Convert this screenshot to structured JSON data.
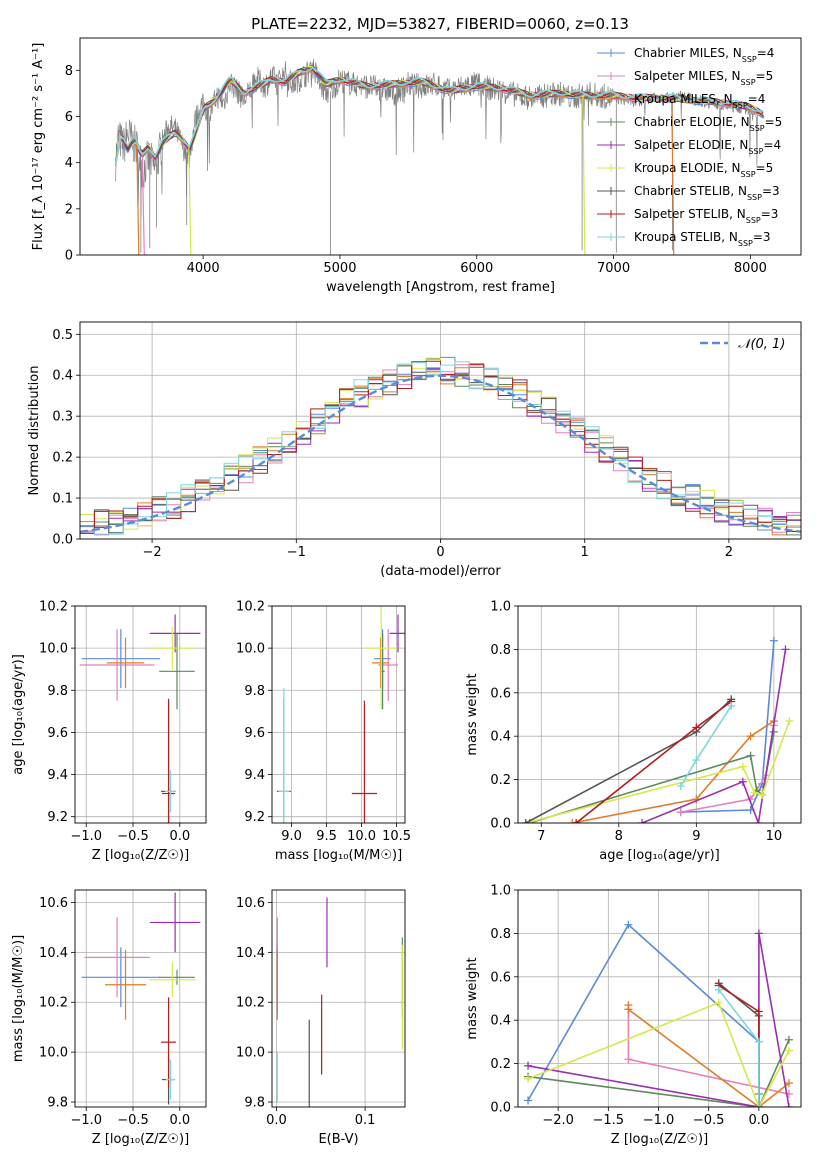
{
  "title": "PLATE=2232, MJD=53827, FIBERID=0060, z=0.13",
  "colors": {
    "Chabrier MILES": "#5b8bd8",
    "Salpeter MILES": "#e57fbd",
    "Kroupa MILES": "#e07b28",
    "Chabrier ELODIE": "#5c8a5c",
    "Salpeter ELODIE": "#9a2fb0",
    "Kroupa ELODIE": "#d6e84c",
    "Chabrier STELIB": "#555555",
    "Salpeter STELIB": "#b31e1e",
    "Kroupa STELIB": "#7dd8dc"
  },
  "chart_data": [
    {
      "id": "spectrum",
      "type": "line",
      "title": "PLATE=2232, MJD=53827, FIBERID=0060, z=0.13",
      "xlabel": "wavelength [Angstrom, rest frame]",
      "ylabel": "Flux [f_λ 10⁻¹⁷ erg cm⁻² s⁻¹ A⁻¹]",
      "xlim": [
        3100,
        8370
      ],
      "ylim": [
        0,
        9.4
      ],
      "xticks": [
        "4000",
        "5000",
        "6000",
        "7000",
        "8000"
      ],
      "yticks": [
        "0",
        "2",
        "4",
        "6",
        "8"
      ],
      "grid": false,
      "legend_position": "right",
      "legend": [
        {
          "label": "Chabrier MILES, N",
          "sub": "SSP",
          "tail": "=4",
          "series": "Chabrier MILES"
        },
        {
          "label": "Salpeter MILES, N",
          "sub": "SSP",
          "tail": "=5",
          "series": "Salpeter MILES"
        },
        {
          "label": "Kroupa MILES, N",
          "sub": "SSP",
          "tail": "=4",
          "series": "Kroupa MILES"
        },
        {
          "label": "Chabrier ELODIE, N",
          "sub": "SSP",
          "tail": "=5",
          "series": "Chabrier ELODIE"
        },
        {
          "label": "Salpeter ELODIE, N",
          "sub": "SSP",
          "tail": "=4",
          "series": "Salpeter ELODIE"
        },
        {
          "label": "Kroupa ELODIE, N",
          "sub": "SSP",
          "tail": "=5",
          "series": "Kroupa ELODIE"
        },
        {
          "label": "Chabrier STELIB, N",
          "sub": "SSP",
          "tail": "=3",
          "series": "Chabrier STELIB"
        },
        {
          "label": "Salpeter STELIB, N",
          "sub": "SSP",
          "tail": "=3",
          "series": "Salpeter STELIB"
        },
        {
          "label": "Kroupa STELIB, N",
          "sub": "SSP",
          "tail": "=3",
          "series": "Kroupa STELIB"
        }
      ],
      "observed": {
        "x": [
          3360,
          3380,
          3420,
          3450,
          3480,
          3520,
          3560,
          3600,
          3650,
          3700,
          3750,
          3800,
          3860,
          3900,
          3940,
          3990,
          4050,
          4100,
          4150,
          4200,
          4250,
          4300,
          4350,
          4400,
          4450,
          4500,
          4550,
          4600,
          4650,
          4700,
          4750,
          4800,
          4860,
          4920,
          5000,
          5100,
          5200,
          5300,
          5400,
          5500,
          5600,
          5700,
          5800,
          5900,
          6000,
          6100,
          6200,
          6300,
          6400,
          6500,
          6600,
          6700,
          6800,
          6900,
          7000,
          7100,
          7200,
          7300,
          7400,
          7500,
          7600,
          7700,
          7800,
          7900,
          8000,
          8100
        ],
        "y": [
          4.1,
          5.1,
          4.7,
          5.3,
          4.9,
          4.6,
          3.6,
          4.2,
          3.7,
          4.9,
          5.6,
          5.4,
          4.6,
          4.2,
          5.8,
          6.5,
          6.1,
          6.9,
          6.6,
          7.5,
          7.1,
          6.7,
          7.2,
          7.6,
          7.3,
          7.7,
          7.5,
          7.9,
          7.4,
          7.6,
          7.8,
          8.2,
          7.3,
          7.0,
          7.6,
          7.4,
          7.3,
          7.2,
          7.0,
          7.4,
          7.3,
          7.4,
          7.1,
          7.3,
          7.4,
          7.2,
          7.1,
          6.9,
          6.8,
          6.9,
          7.0,
          6.8,
          7.0,
          6.9,
          6.8,
          6.7,
          6.6,
          6.9,
          6.8,
          6.9,
          6.7,
          6.6,
          6.5,
          6.4,
          6.3,
          6.0
        ]
      },
      "model": {
        "x": [
          3360,
          3400,
          3450,
          3500,
          3550,
          3600,
          3650,
          3700,
          3750,
          3800,
          3850,
          3900,
          3950,
          4000,
          4100,
          4200,
          4300,
          4400,
          4500,
          4600,
          4700,
          4800,
          4900,
          5000,
          5200,
          5400,
          5600,
          5800,
          6000,
          6200,
          6400,
          6600,
          6800,
          7000,
          7200,
          7400,
          7600,
          7800,
          8000,
          8100
        ],
        "y": [
          4.0,
          5.2,
          4.6,
          5.0,
          4.3,
          4.7,
          4.2,
          4.8,
          5.1,
          5.3,
          5.0,
          4.6,
          5.3,
          6.3,
          6.8,
          7.6,
          7.0,
          7.3,
          7.6,
          7.5,
          7.9,
          8.1,
          7.4,
          7.6,
          7.3,
          7.4,
          7.5,
          7.1,
          7.3,
          7.2,
          6.9,
          7.0,
          6.9,
          6.9,
          6.8,
          6.8,
          6.7,
          6.6,
          6.4,
          6.1
        ]
      },
      "dropouts": [
        {
          "series": "Kroupa MILES",
          "x": 3530
        },
        {
          "series": "Salpeter MILES",
          "x": 3570
        },
        {
          "series": "Kroupa ELODIE",
          "x": 3910
        },
        {
          "series": "Kroupa ELODIE",
          "x": 6790
        },
        {
          "series": "Kroupa MILES",
          "x": 7440
        }
      ]
    },
    {
      "id": "residuals",
      "type": "histogram",
      "xlabel": "(data-model)/error",
      "ylabel": "Normed distribution",
      "xlim": [
        -2.5,
        2.5
      ],
      "ylim": [
        0,
        0.53
      ],
      "xticks": [
        "−2",
        "−1",
        "0",
        "1",
        "2"
      ],
      "yticks": [
        "0.0",
        "0.1",
        "0.2",
        "0.3",
        "0.4",
        "0.5"
      ],
      "grid": true,
      "legend_position": "top-right",
      "gaussian_label": "𝒩(0, 1)",
      "bin_width": 0.1,
      "bin_start": -2.5
    },
    {
      "id": "age-vs-Z",
      "type": "errorbar",
      "xlabel": "Z [log₁₀(Z/Z☉)]",
      "ylabel": "age [log₁₀(age/yr)]",
      "xlim": [
        -1.12,
        0.28
      ],
      "ylim": [
        9.17,
        10.2
      ],
      "xticks": [
        "−1.0",
        "−0.5",
        "0.0"
      ],
      "yticks": [
        "9.2",
        "9.4",
        "9.6",
        "9.8",
        "10.0",
        "10.2"
      ],
      "grid": true,
      "points": [
        {
          "series": "Chabrier MILES",
          "x": -0.63,
          "y": 9.95,
          "xerr": 0.42,
          "yerr": 0.14
        },
        {
          "series": "Salpeter MILES",
          "x": -0.67,
          "y": 9.92,
          "xerr": 0.4,
          "yerr": 0.17
        },
        {
          "series": "Kroupa MILES",
          "x": -0.58,
          "y": 9.93,
          "xerr": 0.2,
          "yerr": 0.12
        },
        {
          "series": "Chabrier ELODIE",
          "x": -0.03,
          "y": 9.89,
          "xerr": 0.19,
          "yerr": 0.18
        },
        {
          "series": "Salpeter ELODIE",
          "x": -0.05,
          "y": 10.07,
          "xerr": 0.27,
          "yerr": 0.09
        },
        {
          "series": "Kroupa ELODIE",
          "x": -0.08,
          "y": 10.0,
          "xerr": 0.22,
          "yerr": 0.1
        },
        {
          "series": "Chabrier STELIB",
          "x": -0.12,
          "y": 9.32,
          "xerr": 0.08,
          "yerr": 0.44
        },
        {
          "series": "Salpeter STELIB",
          "x": -0.12,
          "y": 9.31,
          "xerr": 0.07,
          "yerr": 0.44
        },
        {
          "series": "Kroupa STELIB",
          "x": -0.1,
          "y": 9.32,
          "xerr": 0.06,
          "yerr": 0.1
        }
      ]
    },
    {
      "id": "age-vs-mass",
      "type": "errorbar",
      "xlabel": "mass [log₁₀(M/M☉)]",
      "ylabel": "",
      "xlim": [
        8.72,
        10.62
      ],
      "ylim": [
        9.17,
        10.2
      ],
      "xticks": [
        "9.0",
        "9.5",
        "10.0",
        "10.5"
      ],
      "yticks": [
        "9.2",
        "9.4",
        "9.6",
        "9.8",
        "10.0",
        "10.2"
      ],
      "grid": true,
      "points": [
        {
          "series": "Chabrier MILES",
          "x": 10.3,
          "y": 9.95,
          "xerr": 0.12,
          "yerr": 0.14
        },
        {
          "series": "Salpeter MILES",
          "x": 10.38,
          "y": 9.92,
          "xerr": 0.14,
          "yerr": 0.17
        },
        {
          "series": "Kroupa MILES",
          "x": 10.27,
          "y": 9.93,
          "xerr": 0.12,
          "yerr": 0.12
        },
        {
          "series": "Chabrier ELODIE",
          "x": 10.3,
          "y": 9.89,
          "xerr": 0.03,
          "yerr": 0.18
        },
        {
          "series": "Salpeter ELODIE",
          "x": 10.52,
          "y": 10.07,
          "xerr": 0.12,
          "yerr": 0.09
        },
        {
          "series": "Kroupa ELODIE",
          "x": 10.28,
          "y": 10.0,
          "xerr": 0.23,
          "yerr": 0.29
        },
        {
          "series": "Chabrier STELIB",
          "x": 8.89,
          "y": 9.32,
          "xerr": 0.1,
          "yerr": 0.44
        },
        {
          "series": "Salpeter STELIB",
          "x": 10.04,
          "y": 9.31,
          "xerr": 0.18,
          "yerr": 0.44
        },
        {
          "series": "Kroupa STELIB",
          "x": 8.89,
          "y": 9.32,
          "xerr": 0.08,
          "yerr": 0.49
        }
      ]
    },
    {
      "id": "weight-vs-age",
      "type": "line",
      "xlabel": "age [log₁₀(age/yr)]",
      "ylabel": "mass weight",
      "xlim": [
        6.7,
        10.35
      ],
      "ylim": [
        0,
        1
      ],
      "xticks": [
        "7",
        "8",
        "9",
        "10"
      ],
      "yticks": [
        "0.0",
        "0.2",
        "0.4",
        "0.6",
        "0.8",
        "1.0"
      ],
      "grid": true,
      "series": [
        {
          "name": "Chabrier MILES",
          "x": [
            8.8,
            9.7,
            9.85,
            10.0
          ],
          "y": [
            0.05,
            0.06,
            0.18,
            0.84
          ]
        },
        {
          "name": "Salpeter MILES",
          "x": [
            8.8,
            9.7,
            9.9,
            10.0
          ],
          "y": [
            0.05,
            0.11,
            0.22,
            0.45
          ]
        },
        {
          "name": "Kroupa MILES",
          "x": [
            7.4,
            9.0,
            9.7,
            10.0
          ],
          "y": [
            0.0,
            0.11,
            0.4,
            0.47
          ]
        },
        {
          "name": "Chabrier ELODIE",
          "x": [
            6.85,
            9.7,
            9.78,
            9.85,
            10.0
          ],
          "y": [
            0.0,
            0.31,
            0.15,
            0.13,
            0.42
          ]
        },
        {
          "name": "Salpeter ELODIE",
          "x": [
            8.3,
            9.6,
            9.8,
            10.15
          ],
          "y": [
            0.0,
            0.19,
            0.0,
            0.8
          ]
        },
        {
          "name": "Kroupa ELODIE",
          "x": [
            6.8,
            9.6,
            9.75,
            9.85,
            10.2
          ],
          "y": [
            0.0,
            0.26,
            0.14,
            0.13,
            0.47
          ]
        },
        {
          "name": "Chabrier STELIB",
          "x": [
            6.8,
            9.0,
            9.45
          ],
          "y": [
            0.0,
            0.42,
            0.57
          ]
        },
        {
          "name": "Salpeter STELIB",
          "x": [
            7.45,
            9.0,
            9.45
          ],
          "y": [
            0.0,
            0.44,
            0.56
          ]
        },
        {
          "name": "Kroupa STELIB",
          "x": [
            8.8,
            9.0,
            9.45
          ],
          "y": [
            0.17,
            0.29,
            0.54
          ]
        }
      ]
    },
    {
      "id": "mass-vs-Z",
      "type": "errorbar",
      "xlabel": "Z [log₁₀(Z/Z☉)]",
      "ylabel": "mass [log₁₀(M/M☉)]",
      "xlim": [
        -1.12,
        0.28
      ],
      "ylim": [
        9.78,
        10.65
      ],
      "xticks": [
        "−1.0",
        "−0.5",
        "0.0"
      ],
      "yticks": [
        "9.8",
        "10.0",
        "10.2",
        "10.4",
        "10.6"
      ],
      "grid": true,
      "points": [
        {
          "series": "Chabrier MILES",
          "x": -0.63,
          "y": 10.3,
          "xerr": 0.42,
          "yerr": 0.12
        },
        {
          "series": "Salpeter MILES",
          "x": -0.67,
          "y": 10.38,
          "xerr": 0.35,
          "yerr": 0.16
        },
        {
          "series": "Kroupa MILES",
          "x": -0.58,
          "y": 10.27,
          "xerr": 0.22,
          "yerr": 0.14
        },
        {
          "series": "Chabrier ELODIE",
          "x": -0.03,
          "y": 10.3,
          "xerr": 0.19,
          "yerr": 0.03
        },
        {
          "series": "Salpeter ELODIE",
          "x": -0.05,
          "y": 10.52,
          "xerr": 0.27,
          "yerr": 0.12
        },
        {
          "series": "Kroupa ELODIE",
          "x": -0.08,
          "y": 10.29,
          "xerr": 0.25,
          "yerr": 0.07
        },
        {
          "series": "Chabrier STELIB",
          "x": -0.12,
          "y": 9.89,
          "xerr": 0.07,
          "yerr": 0.1
        },
        {
          "series": "Salpeter STELIB",
          "x": -0.12,
          "y": 10.04,
          "xerr": 0.08,
          "yerr": 0.18
        },
        {
          "series": "Kroupa STELIB",
          "x": -0.1,
          "y": 9.89,
          "xerr": 0.05,
          "yerr": 0.08
        }
      ]
    },
    {
      "id": "mass-vs-ebv",
      "type": "errorbar",
      "xlabel": "E(B-V)",
      "ylabel": "",
      "xlim": [
        -0.005,
        0.145
      ],
      "ylim": [
        9.78,
        10.65
      ],
      "xticks": [
        "0.0",
        "0.1"
      ],
      "yticks": [
        "9.8",
        "10.0",
        "10.2",
        "10.4",
        "10.6"
      ],
      "grid": true,
      "points": [
        {
          "series": "Chabrier MILES",
          "x": 0.001,
          "y": 10.3,
          "xerr": 0,
          "yerr": 0.14
        },
        {
          "series": "Salpeter MILES",
          "x": 0.001,
          "y": 10.38,
          "xerr": 0,
          "yerr": 0.16
        },
        {
          "series": "Kroupa MILES",
          "x": 0.001,
          "y": 10.27,
          "xerr": 0,
          "yerr": 0.14
        },
        {
          "series": "Chabrier ELODIE",
          "x": 0.142,
          "y": 10.3,
          "xerr": 0,
          "yerr": 0.16
        },
        {
          "series": "Salpeter ELODIE",
          "x": 0.057,
          "y": 10.48,
          "xerr": 0,
          "yerr": 0.14
        },
        {
          "series": "Kroupa ELODIE",
          "x": 0.142,
          "y": 10.22,
          "xerr": 0,
          "yerr": 0.21
        },
        {
          "series": "Chabrier STELIB",
          "x": 0.037,
          "y": 9.92,
          "xerr": 0,
          "yerr": 0.21
        },
        {
          "series": "Salpeter STELIB",
          "x": 0.051,
          "y": 10.07,
          "xerr": 0,
          "yerr": 0.16
        },
        {
          "series": "Kroupa STELIB",
          "x": 0.001,
          "y": 9.9,
          "xerr": 0,
          "yerr": 0.1
        }
      ]
    },
    {
      "id": "weight-vs-Z",
      "type": "line",
      "xlabel": "Z [log₁₀(Z/Z☉)]",
      "ylabel": "mass weight",
      "xlim": [
        -2.4,
        0.42
      ],
      "ylim": [
        0,
        1
      ],
      "xticks": [
        "−2.0",
        "−1.5",
        "−1.0",
        "−0.5",
        "0.0"
      ],
      "yticks": [
        "0.0",
        "0.2",
        "0.4",
        "0.6",
        "0.8",
        "1.0"
      ],
      "grid": true,
      "series": [
        {
          "name": "Chabrier MILES",
          "x": [
            -2.3,
            -1.3,
            0.0,
            0.0
          ],
          "y": [
            0.03,
            0.84,
            0.3,
            0.06
          ]
        },
        {
          "name": "Salpeter MILES",
          "x": [
            -1.3,
            -1.3,
            0.3
          ],
          "y": [
            0.45,
            0.22,
            0.06
          ]
        },
        {
          "name": "Kroupa MILES",
          "x": [
            -1.3,
            -1.3,
            0.0,
            0.3
          ],
          "y": [
            0.47,
            0.45,
            0.0,
            0.11
          ]
        },
        {
          "name": "Chabrier ELODIE",
          "x": [
            -2.3,
            0.0,
            0.3
          ],
          "y": [
            0.14,
            0.0,
            0.31
          ]
        },
        {
          "name": "Salpeter ELODIE",
          "x": [
            -2.3,
            0.0,
            0.0,
            0.3
          ],
          "y": [
            0.19,
            0.0,
            0.8,
            0.0
          ]
        },
        {
          "name": "Kroupa ELODIE",
          "x": [
            -2.3,
            -0.4,
            0.0,
            0.3
          ],
          "y": [
            0.13,
            0.48,
            0.0,
            0.26
          ]
        },
        {
          "name": "Chabrier STELIB",
          "x": [
            -0.4,
            0.0,
            0.0
          ],
          "y": [
            0.57,
            0.42,
            0.0
          ]
        },
        {
          "name": "Salpeter STELIB",
          "x": [
            -0.4,
            0.0,
            0.0
          ],
          "y": [
            0.56,
            0.44,
            0.0
          ]
        },
        {
          "name": "Kroupa STELIB",
          "x": [
            -0.4,
            0.0,
            0.0
          ],
          "y": [
            0.54,
            0.3,
            0.0
          ]
        }
      ]
    }
  ]
}
